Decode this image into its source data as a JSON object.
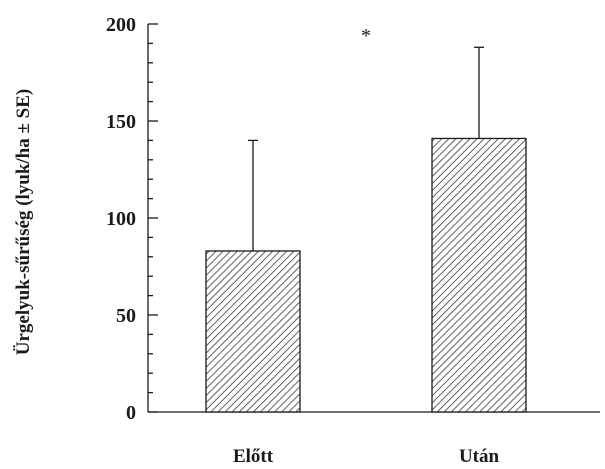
{
  "chart_data": {
    "type": "bar",
    "title": "",
    "xlabel": "",
    "ylabel": "Ürgelyuk-sűrűség (lyuk/ha ± SE)",
    "categories": [
      "Előtt",
      "Után"
    ],
    "values": [
      83,
      141
    ],
    "error_upper": [
      140,
      188
    ],
    "ylim": [
      0,
      200
    ],
    "yticks": [
      0,
      50,
      100,
      150,
      200
    ],
    "ytick_labels": [
      "0",
      "50",
      "100",
      "150",
      "200"
    ],
    "minor_tick_step": 10,
    "grid": false,
    "bar_fill": "hatched",
    "annotations": [
      {
        "text": "*",
        "x_between": [
          0,
          1
        ]
      }
    ]
  }
}
